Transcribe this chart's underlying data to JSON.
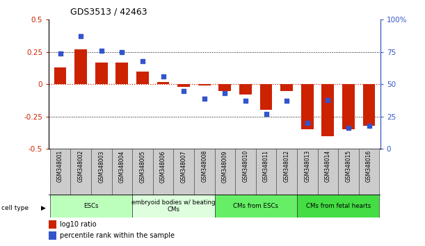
{
  "title": "GDS3513 / 42463",
  "samples": [
    "GSM348001",
    "GSM348002",
    "GSM348003",
    "GSM348004",
    "GSM348005",
    "GSM348006",
    "GSM348007",
    "GSM348008",
    "GSM348009",
    "GSM348010",
    "GSM348011",
    "GSM348012",
    "GSM348013",
    "GSM348014",
    "GSM348015",
    "GSM348016"
  ],
  "log10_ratio": [
    0.13,
    0.27,
    0.17,
    0.17,
    0.1,
    0.02,
    -0.02,
    -0.01,
    -0.05,
    -0.08,
    -0.2,
    -0.05,
    -0.35,
    -0.4,
    -0.35,
    -0.32
  ],
  "percentile_rank": [
    74,
    87,
    76,
    75,
    68,
    56,
    45,
    39,
    43,
    37,
    27,
    37,
    20,
    38,
    16,
    18
  ],
  "cell_type_groups": [
    {
      "label": "ESCs",
      "start": 0,
      "end": 3,
      "color": "#bbffbb"
    },
    {
      "label": "embryoid bodies w/ beating\nCMs",
      "start": 4,
      "end": 7,
      "color": "#ddffdd"
    },
    {
      "label": "CMs from ESCs",
      "start": 8,
      "end": 11,
      "color": "#66ee66"
    },
    {
      "label": "CMs from fetal hearts",
      "start": 12,
      "end": 15,
      "color": "#44dd44"
    }
  ],
  "bar_color": "#cc2200",
  "dot_color": "#3355cc",
  "ylim_left": [
    -0.5,
    0.5
  ],
  "ylim_right": [
    0,
    100
  ],
  "yticks_left": [
    -0.5,
    -0.25,
    0,
    0.25,
    0.5
  ],
  "yticks_right": [
    0,
    25,
    50,
    75,
    100
  ],
  "hline_red_color": "#cc2200",
  "hline_black_color": "black",
  "plot_bg": "white",
  "label_bg": "#cccccc",
  "legend_red_label": "log10 ratio",
  "legend_blue_label": "percentile rank within the sample"
}
